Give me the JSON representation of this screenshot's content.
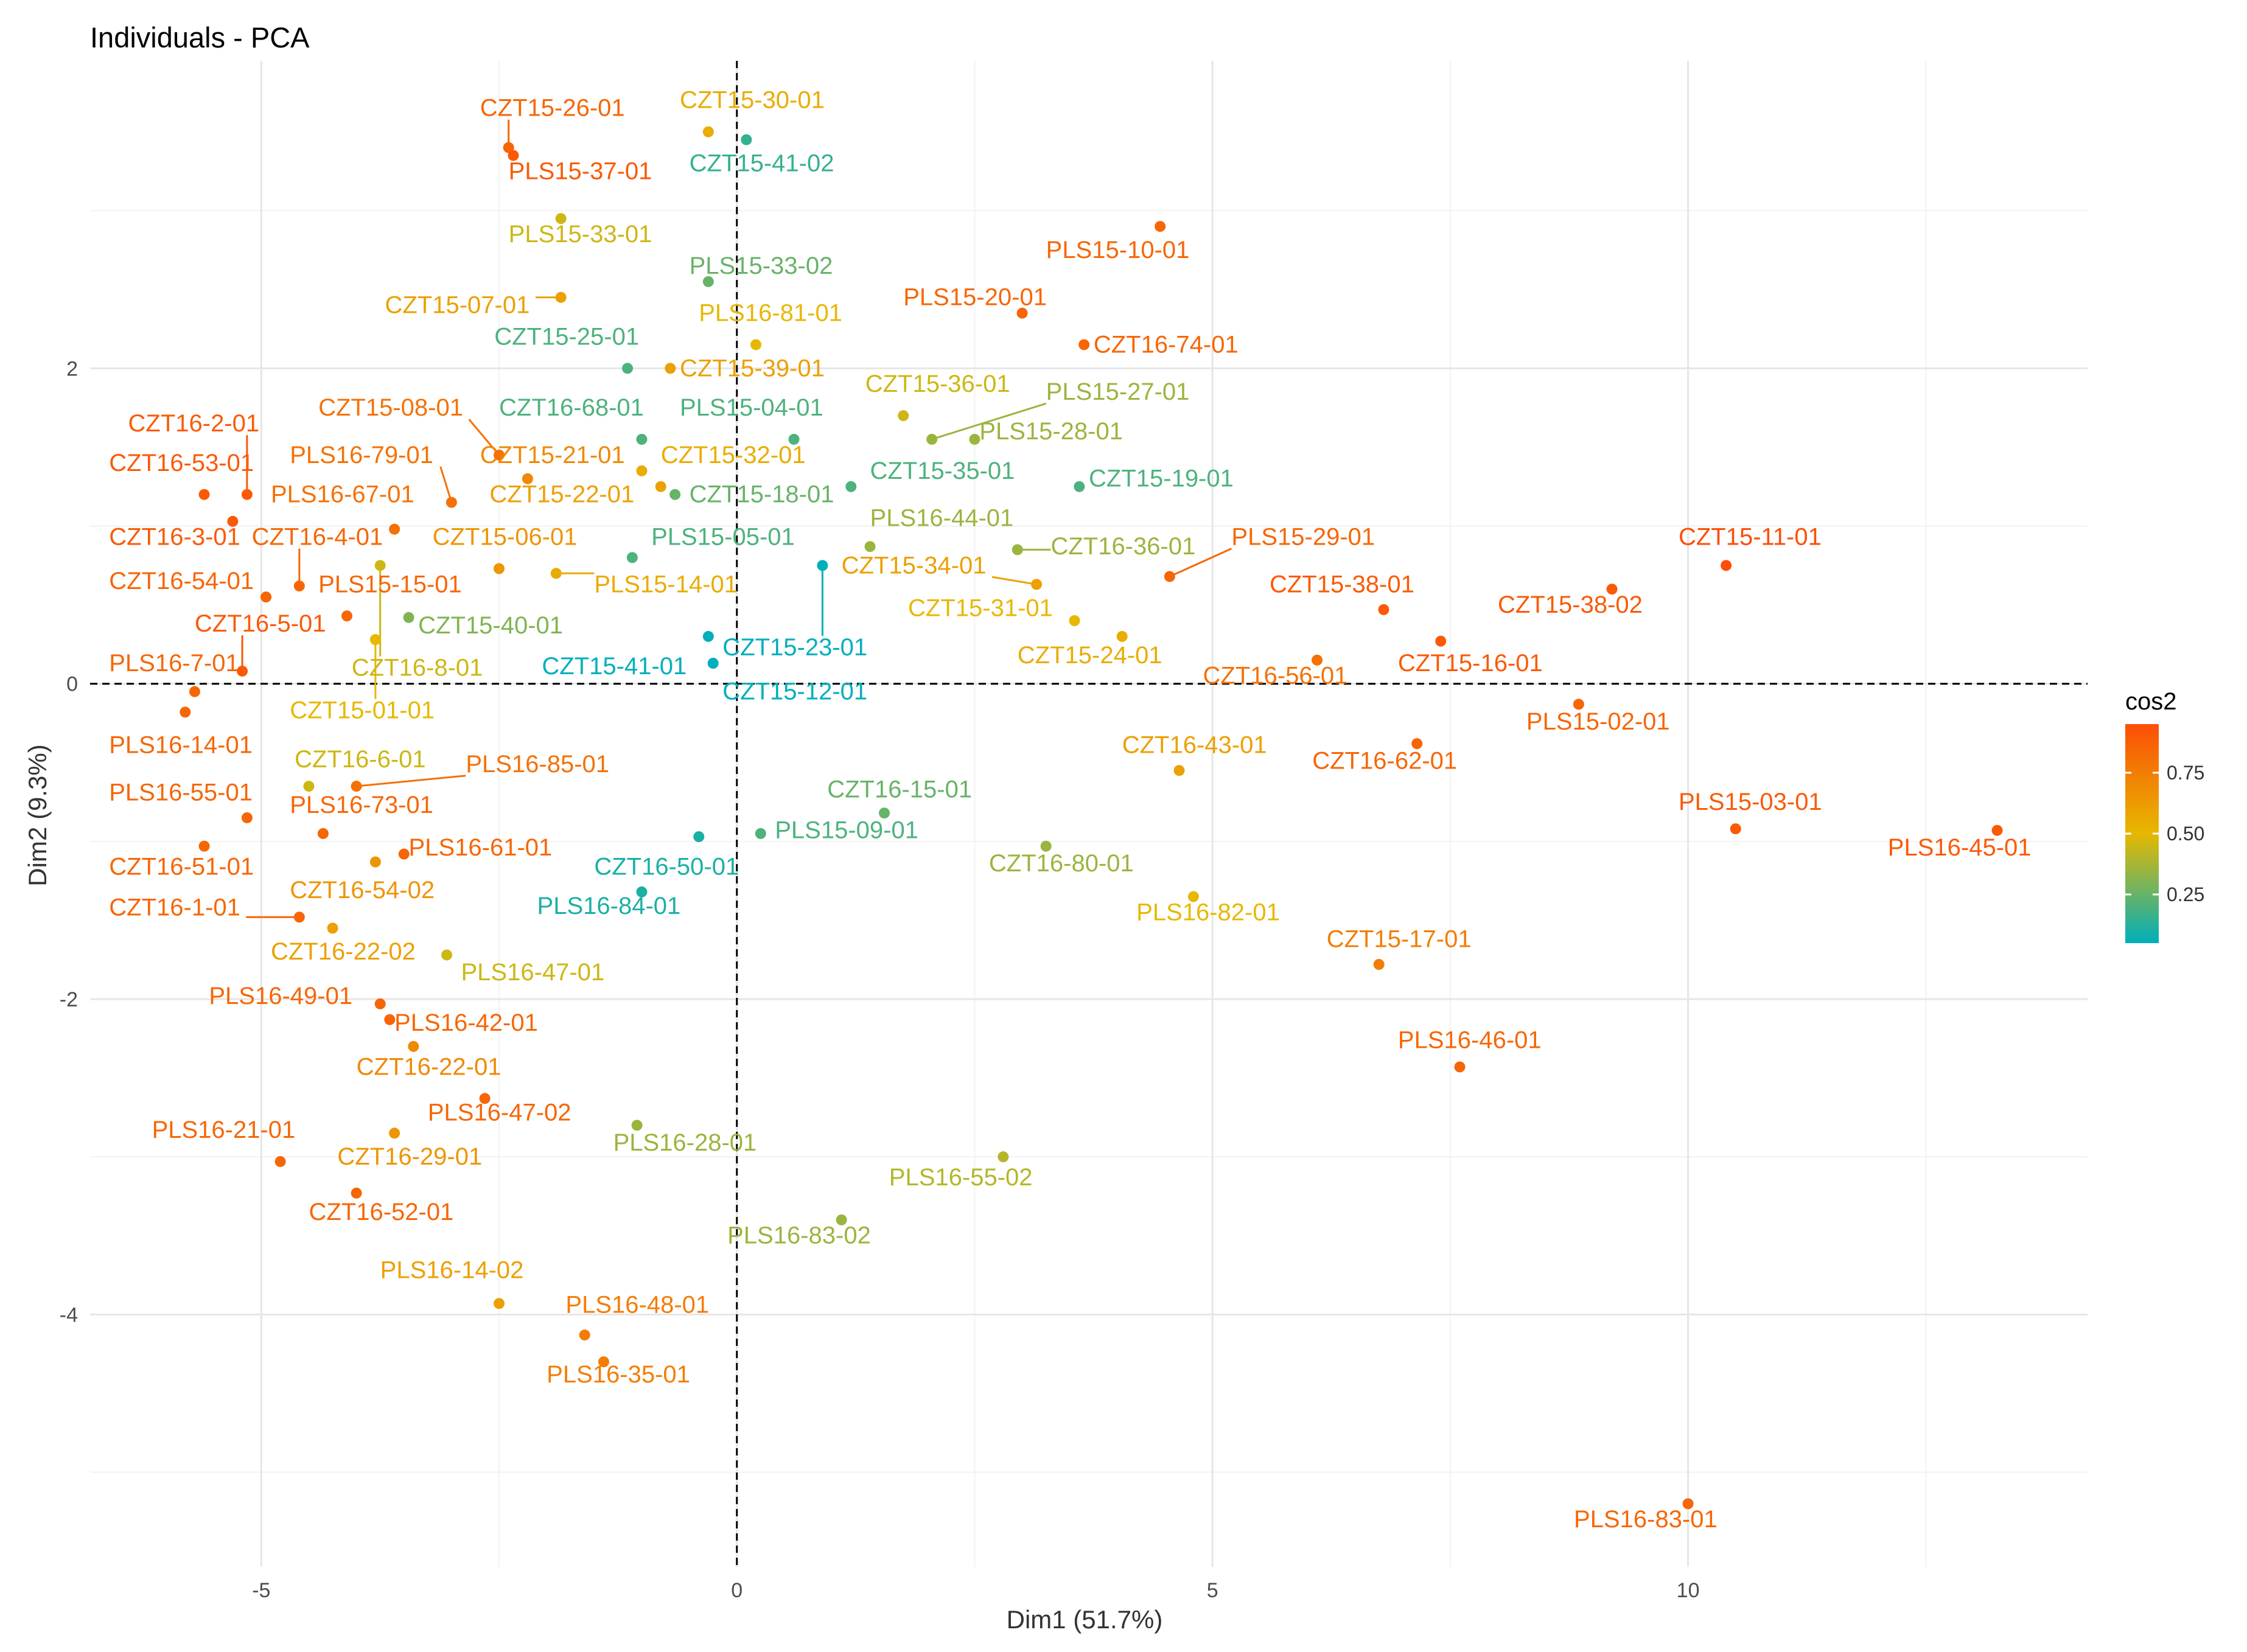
{
  "chart_data": {
    "type": "scatter",
    "title": "Individuals - PCA",
    "xlabel": "Dim1 (51.7%)",
    "ylabel": "Dim2 (9.3%)",
    "xlim": [
      -6.8,
      14.2
    ],
    "ylim": [
      -5.6,
      3.95
    ],
    "x_ticks": [
      -5,
      0,
      5,
      10
    ],
    "y_ticks": [
      -4,
      -2,
      0,
      2
    ],
    "reference_lines": {
      "x": 0,
      "y": 0,
      "style": "dashed"
    },
    "grid": true,
    "color_by": "cos2",
    "legend": {
      "title": "cos2",
      "position": "right",
      "ticks": [
        0.25,
        0.5,
        0.75
      ],
      "tick_labels": [
        "0.25",
        "0.50",
        "0.75"
      ],
      "range": [
        0.05,
        0.95
      ],
      "colors": [
        "#00AFBB",
        "#E7B800",
        "#FC4E07"
      ]
    },
    "points": [
      {
        "label": "CZT15-26-01",
        "x": -2.4,
        "y": 3.4,
        "cos2": 0.85,
        "lx": -2.7,
        "ly": 3.6
      },
      {
        "label": "CZT15-30-01",
        "x": -0.3,
        "y": 3.5,
        "cos2": 0.55,
        "lx": -0.6,
        "ly": 3.65
      },
      {
        "label": "CZT15-41-02",
        "x": 0.1,
        "y": 3.45,
        "cos2": 0.15,
        "lx": -0.5,
        "ly": 3.25
      },
      {
        "label": "PLS15-37-01",
        "x": -2.35,
        "y": 3.35,
        "cos2": 0.9,
        "lx": -2.4,
        "ly": 3.2
      },
      {
        "label": "PLS15-33-01",
        "x": -1.85,
        "y": 2.95,
        "cos2": 0.45,
        "lx": -2.4,
        "ly": 2.8
      },
      {
        "label": "PLS15-10-01",
        "x": 4.45,
        "y": 2.9,
        "cos2": 0.85,
        "lx": 3.25,
        "ly": 2.7
      },
      {
        "label": "PLS15-33-02",
        "x": -0.3,
        "y": 2.55,
        "cos2": 0.25,
        "lx": -0.5,
        "ly": 2.6
      },
      {
        "label": "CZT15-07-01",
        "x": -1.85,
        "y": 2.45,
        "cos2": 0.6,
        "lx": -3.7,
        "ly": 2.35
      },
      {
        "label": "PLS15-20-01",
        "x": 3.0,
        "y": 2.35,
        "cos2": 0.85,
        "lx": 1.75,
        "ly": 2.4
      },
      {
        "label": "PLS16-81-01",
        "x": 0.2,
        "y": 2.15,
        "cos2": 0.5,
        "lx": -0.4,
        "ly": 2.3
      },
      {
        "label": "CZT16-74-01",
        "x": 3.65,
        "y": 2.15,
        "cos2": 0.85,
        "lx": 3.75,
        "ly": 2.1
      },
      {
        "label": "CZT15-25-01",
        "x": -1.15,
        "y": 2.0,
        "cos2": 0.2,
        "lx": -2.55,
        "ly": 2.15
      },
      {
        "label": "CZT15-39-01",
        "x": -0.7,
        "y": 2.0,
        "cos2": 0.6,
        "lx": -0.6,
        "ly": 1.95
      },
      {
        "label": "CZT15-36-01",
        "x": 1.75,
        "y": 1.7,
        "cos2": 0.45,
        "lx": 1.35,
        "ly": 1.85
      },
      {
        "label": "PLS15-27-01",
        "x": 2.05,
        "y": 1.55,
        "cos2": 0.35,
        "lx": 3.25,
        "ly": 1.8
      },
      {
        "label": "CZT15-08-01",
        "x": -2.5,
        "y": 1.45,
        "cos2": 0.8,
        "lx": -4.4,
        "ly": 1.7
      },
      {
        "label": "CZT16-68-01",
        "x": -1.0,
        "y": 1.55,
        "cos2": 0.2,
        "lx": -2.5,
        "ly": 1.7
      },
      {
        "label": "PLS15-04-01",
        "x": 0.6,
        "y": 1.55,
        "cos2": 0.2,
        "lx": -0.6,
        "ly": 1.7
      },
      {
        "label": "CZT16-2-01",
        "x": -5.15,
        "y": 1.2,
        "cos2": 0.9,
        "lx": -6.4,
        "ly": 1.6
      },
      {
        "label": "PLS15-28-01",
        "x": 2.5,
        "y": 1.55,
        "cos2": 0.35,
        "lx": 2.55,
        "ly": 1.55
      },
      {
        "label": "CZT16-53-01",
        "x": -5.6,
        "y": 1.2,
        "cos2": 0.9,
        "lx": -6.6,
        "ly": 1.35
      },
      {
        "label": "PLS16-79-01",
        "x": -3.0,
        "y": 1.15,
        "cos2": 0.8,
        "lx": -4.7,
        "ly": 1.4
      },
      {
        "label": "CZT15-21-01",
        "x": -2.2,
        "y": 1.3,
        "cos2": 0.7,
        "lx": -2.7,
        "ly": 1.4
      },
      {
        "label": "CZT15-32-01",
        "x": -1.0,
        "y": 1.35,
        "cos2": 0.55,
        "lx": -0.8,
        "ly": 1.4
      },
      {
        "label": "CZT15-35-01",
        "x": 1.2,
        "y": 1.25,
        "cos2": 0.2,
        "lx": 1.4,
        "ly": 1.3
      },
      {
        "label": "CZT15-19-01",
        "x": 3.6,
        "y": 1.25,
        "cos2": 0.2,
        "lx": 3.7,
        "ly": 1.25
      },
      {
        "label": "CZT15-22-01",
        "x": -0.8,
        "y": 1.25,
        "cos2": 0.6,
        "lx": -2.6,
        "ly": 1.15
      },
      {
        "label": "CZT15-18-01",
        "x": -0.65,
        "y": 1.2,
        "cos2": 0.25,
        "lx": -0.5,
        "ly": 1.15
      },
      {
        "label": "PLS16-67-01",
        "x": -3.6,
        "y": 0.98,
        "cos2": 0.8,
        "lx": -4.9,
        "ly": 1.15
      },
      {
        "label": "PLS16-44-01",
        "x": 1.4,
        "y": 0.87,
        "cos2": 0.35,
        "lx": 1.4,
        "ly": 1.0
      },
      {
        "label": "CZT16-3-01",
        "x": -5.3,
        "y": 1.03,
        "cos2": 0.9,
        "lx": -6.6,
        "ly": 0.88
      },
      {
        "label": "CZT16-4-01",
        "x": -4.6,
        "y": 0.62,
        "cos2": 0.85,
        "lx": -5.1,
        "ly": 0.88
      },
      {
        "label": "CZT15-06-01",
        "x": -2.5,
        "y": 0.73,
        "cos2": 0.65,
        "lx": -3.2,
        "ly": 0.88
      },
      {
        "label": "PLS15-05-01",
        "x": -1.1,
        "y": 0.8,
        "cos2": 0.2,
        "lx": -0.9,
        "ly": 0.88
      },
      {
        "label": "CZT16-36-01",
        "x": 2.95,
        "y": 0.85,
        "cos2": 0.35,
        "lx": 3.3,
        "ly": 0.82
      },
      {
        "label": "PLS15-29-01",
        "x": 4.55,
        "y": 0.68,
        "cos2": 0.85,
        "lx": 5.2,
        "ly": 0.88
      },
      {
        "label": "CZT15-11-01",
        "x": 10.4,
        "y": 0.75,
        "cos2": 0.95,
        "lx": 9.9,
        "ly": 0.88
      },
      {
        "label": "PLS15-14-01",
        "x": -1.9,
        "y": 0.7,
        "cos2": 0.55,
        "lx": -1.5,
        "ly": 0.58
      },
      {
        "label": "CZT15-34-01",
        "x": 3.15,
        "y": 0.63,
        "cos2": 0.6,
        "lx": 1.1,
        "ly": 0.7
      },
      {
        "label": "CZT16-54-01",
        "x": -4.95,
        "y": 0.55,
        "cos2": 0.85,
        "lx": -6.6,
        "ly": 0.6
      },
      {
        "label": "PLS15-15-01",
        "x": -4.1,
        "y": 0.43,
        "cos2": 0.85,
        "lx": -4.4,
        "ly": 0.58
      },
      {
        "label": "CZT15-38-01",
        "x": 6.8,
        "y": 0.47,
        "cos2": 0.9,
        "lx": 5.6,
        "ly": 0.58
      },
      {
        "label": "CZT15-38-02",
        "x": 9.2,
        "y": 0.6,
        "cos2": 0.9,
        "lx": 8.0,
        "ly": 0.45
      },
      {
        "label": "CZT15-31-01",
        "x": 3.55,
        "y": 0.4,
        "cos2": 0.5,
        "lx": 1.8,
        "ly": 0.43
      },
      {
        "label": "CZT15-40-01",
        "x": -3.45,
        "y": 0.42,
        "cos2": 0.3,
        "lx": -3.35,
        "ly": 0.32
      },
      {
        "label": "CZT16-5-01",
        "x": -5.2,
        "y": 0.08,
        "cos2": 0.9,
        "lx": -5.7,
        "ly": 0.33
      },
      {
        "label": "CZT15-23-01",
        "x": 0.9,
        "y": 0.75,
        "cos2": 0.05,
        "lx": -0.15,
        "ly": 0.18
      },
      {
        "label": "CZT15-24-01",
        "x": 4.05,
        "y": 0.3,
        "cos2": 0.55,
        "lx": 2.95,
        "ly": 0.13
      },
      {
        "label": "CZT16-56-01",
        "x": 6.1,
        "y": 0.15,
        "cos2": 0.8,
        "lx": 4.9,
        "ly": 0.0
      },
      {
        "label": "CZT15-16-01",
        "x": 7.4,
        "y": 0.27,
        "cos2": 0.9,
        "lx": 6.95,
        "ly": 0.08
      },
      {
        "label": "PLS16-7-01",
        "x": -5.7,
        "y": -0.05,
        "cos2": 0.85,
        "lx": -6.6,
        "ly": 0.08
      },
      {
        "label": "CZT16-8-01",
        "x": -3.75,
        "y": 0.75,
        "cos2": 0.45,
        "lx": -4.05,
        "ly": 0.05
      },
      {
        "label": "CZT15-41-01",
        "x": -0.3,
        "y": 0.3,
        "cos2": 0.05,
        "lx": -2.05,
        "ly": 0.06
      },
      {
        "label": "CZT15-12-01",
        "x": -0.25,
        "y": 0.13,
        "cos2": 0.05,
        "lx": -0.15,
        "ly": -0.1
      },
      {
        "label": "CZT15-01-01",
        "x": -3.8,
        "y": 0.28,
        "cos2": 0.5,
        "lx": -4.7,
        "ly": -0.22
      },
      {
        "label": "PLS15-02-01",
        "x": 8.85,
        "y": -0.13,
        "cos2": 0.85,
        "lx": 8.3,
        "ly": -0.29
      },
      {
        "label": "PLS16-14-01",
        "x": -5.8,
        "y": -0.18,
        "cos2": 0.85,
        "lx": -6.6,
        "ly": -0.44
      },
      {
        "label": "CZT16-43-01",
        "x": 4.65,
        "y": -0.55,
        "cos2": 0.6,
        "lx": 4.05,
        "ly": -0.44
      },
      {
        "label": "CZT16-62-01",
        "x": 7.15,
        "y": -0.38,
        "cos2": 0.85,
        "lx": 6.05,
        "ly": -0.54
      },
      {
        "label": "CZT16-6-01",
        "x": -4.5,
        "y": -0.65,
        "cos2": 0.45,
        "lx": -4.65,
        "ly": -0.53
      },
      {
        "label": "PLS16-85-01",
        "x": -4.0,
        "y": -0.65,
        "cos2": 0.8,
        "lx": -2.85,
        "ly": -0.56
      },
      {
        "label": "PLS16-55-01",
        "x": -5.15,
        "y": -0.85,
        "cos2": 0.85,
        "lx": -6.6,
        "ly": -0.74
      },
      {
        "label": "PLS16-73-01",
        "x": -4.35,
        "y": -0.95,
        "cos2": 0.85,
        "lx": -4.7,
        "ly": -0.82
      },
      {
        "label": "CZT16-15-01",
        "x": 1.55,
        "y": -0.82,
        "cos2": 0.25,
        "lx": 0.95,
        "ly": -0.72
      },
      {
        "label": "PLS15-09-01",
        "x": 0.25,
        "y": -0.95,
        "cos2": 0.2,
        "lx": 0.4,
        "ly": -0.98
      },
      {
        "label": "PLS15-03-01",
        "x": 10.5,
        "y": -0.92,
        "cos2": 0.9,
        "lx": 9.9,
        "ly": -0.8
      },
      {
        "label": "PLS16-45-01",
        "x": 13.25,
        "y": -0.93,
        "cos2": 0.9,
        "lx": 12.1,
        "ly": -1.09
      },
      {
        "label": "PLS16-61-01",
        "x": -3.5,
        "y": -1.08,
        "cos2": 0.85,
        "lx": -3.45,
        "ly": -1.09
      },
      {
        "label": "CZT16-80-01",
        "x": 3.25,
        "y": -1.03,
        "cos2": 0.35,
        "lx": 2.65,
        "ly": -1.19
      },
      {
        "label": "CZT16-51-01",
        "x": -5.6,
        "y": -1.03,
        "cos2": 0.85,
        "lx": -6.6,
        "ly": -1.21
      },
      {
        "label": "CZT16-50-01",
        "x": -0.4,
        "y": -0.97,
        "cos2": 0.1,
        "lx": -1.5,
        "ly": -1.21
      },
      {
        "label": "CZT16-54-02",
        "x": -3.8,
        "y": -1.13,
        "cos2": 0.65,
        "lx": -4.7,
        "ly": -1.36
      },
      {
        "label": "PLS16-82-01",
        "x": 4.8,
        "y": -1.35,
        "cos2": 0.5,
        "lx": 4.2,
        "ly": -1.5
      },
      {
        "label": "CZT16-1-01",
        "x": -4.6,
        "y": -1.48,
        "cos2": 0.85,
        "lx": -6.6,
        "ly": -1.47
      },
      {
        "label": "PLS16-84-01",
        "x": -1.0,
        "y": -1.32,
        "cos2": 0.1,
        "lx": -2.1,
        "ly": -1.46
      },
      {
        "label": "CZT16-22-02",
        "x": -4.25,
        "y": -1.55,
        "cos2": 0.6,
        "lx": -4.9,
        "ly": -1.75
      },
      {
        "label": "PLS16-47-01",
        "x": -3.05,
        "y": -1.72,
        "cos2": 0.45,
        "lx": -2.9,
        "ly": -1.88
      },
      {
        "label": "CZT15-17-01",
        "x": 6.75,
        "y": -1.78,
        "cos2": 0.75,
        "lx": 6.2,
        "ly": -1.67
      },
      {
        "label": "PLS16-49-01",
        "x": -3.75,
        "y": -2.03,
        "cos2": 0.85,
        "lx": -5.55,
        "ly": -2.03
      },
      {
        "label": "PLS16-42-01",
        "x": -3.65,
        "y": -2.13,
        "cos2": 0.85,
        "lx": -3.6,
        "ly": -2.2
      },
      {
        "label": "PLS16-46-01",
        "x": 7.6,
        "y": -2.43,
        "cos2": 0.85,
        "lx": 6.95,
        "ly": -2.31
      },
      {
        "label": "CZT16-22-01",
        "x": -3.4,
        "y": -2.3,
        "cos2": 0.7,
        "lx": -4.0,
        "ly": -2.48
      },
      {
        "label": "PLS16-47-02",
        "x": -2.65,
        "y": -2.63,
        "cos2": 0.85,
        "lx": -3.25,
        "ly": -2.77
      },
      {
        "label": "PLS16-21-01",
        "x": -4.8,
        "y": -3.03,
        "cos2": 0.85,
        "lx": -6.15,
        "ly": -2.88
      },
      {
        "label": "CZT16-29-01",
        "x": -3.6,
        "y": -2.85,
        "cos2": 0.65,
        "lx": -4.2,
        "ly": -3.05
      },
      {
        "label": "PLS16-28-01",
        "x": -1.05,
        "y": -2.8,
        "cos2": 0.35,
        "lx": -1.3,
        "ly": -2.96
      },
      {
        "label": "PLS16-55-02",
        "x": 2.8,
        "y": -3.0,
        "cos2": 0.4,
        "lx": 1.6,
        "ly": -3.18
      },
      {
        "label": "CZT16-52-01",
        "x": -4.0,
        "y": -3.23,
        "cos2": 0.85,
        "lx": -4.5,
        "ly": -3.4
      },
      {
        "label": "PLS16-83-02",
        "x": 1.1,
        "y": -3.4,
        "cos2": 0.35,
        "lx": -0.1,
        "ly": -3.55
      },
      {
        "label": "PLS16-14-02",
        "x": -2.5,
        "y": -3.93,
        "cos2": 0.6,
        "lx": -3.75,
        "ly": -3.77
      },
      {
        "label": "PLS16-48-01",
        "x": -1.6,
        "y": -4.13,
        "cos2": 0.75,
        "lx": -1.8,
        "ly": -3.99
      },
      {
        "label": "PLS16-35-01",
        "x": -1.4,
        "y": -4.3,
        "cos2": 0.75,
        "lx": -2.0,
        "ly": -4.43
      },
      {
        "label": "PLS16-83-01",
        "x": 10.0,
        "y": -5.2,
        "cos2": 0.85,
        "lx": 8.8,
        "ly": -5.35
      }
    ]
  }
}
